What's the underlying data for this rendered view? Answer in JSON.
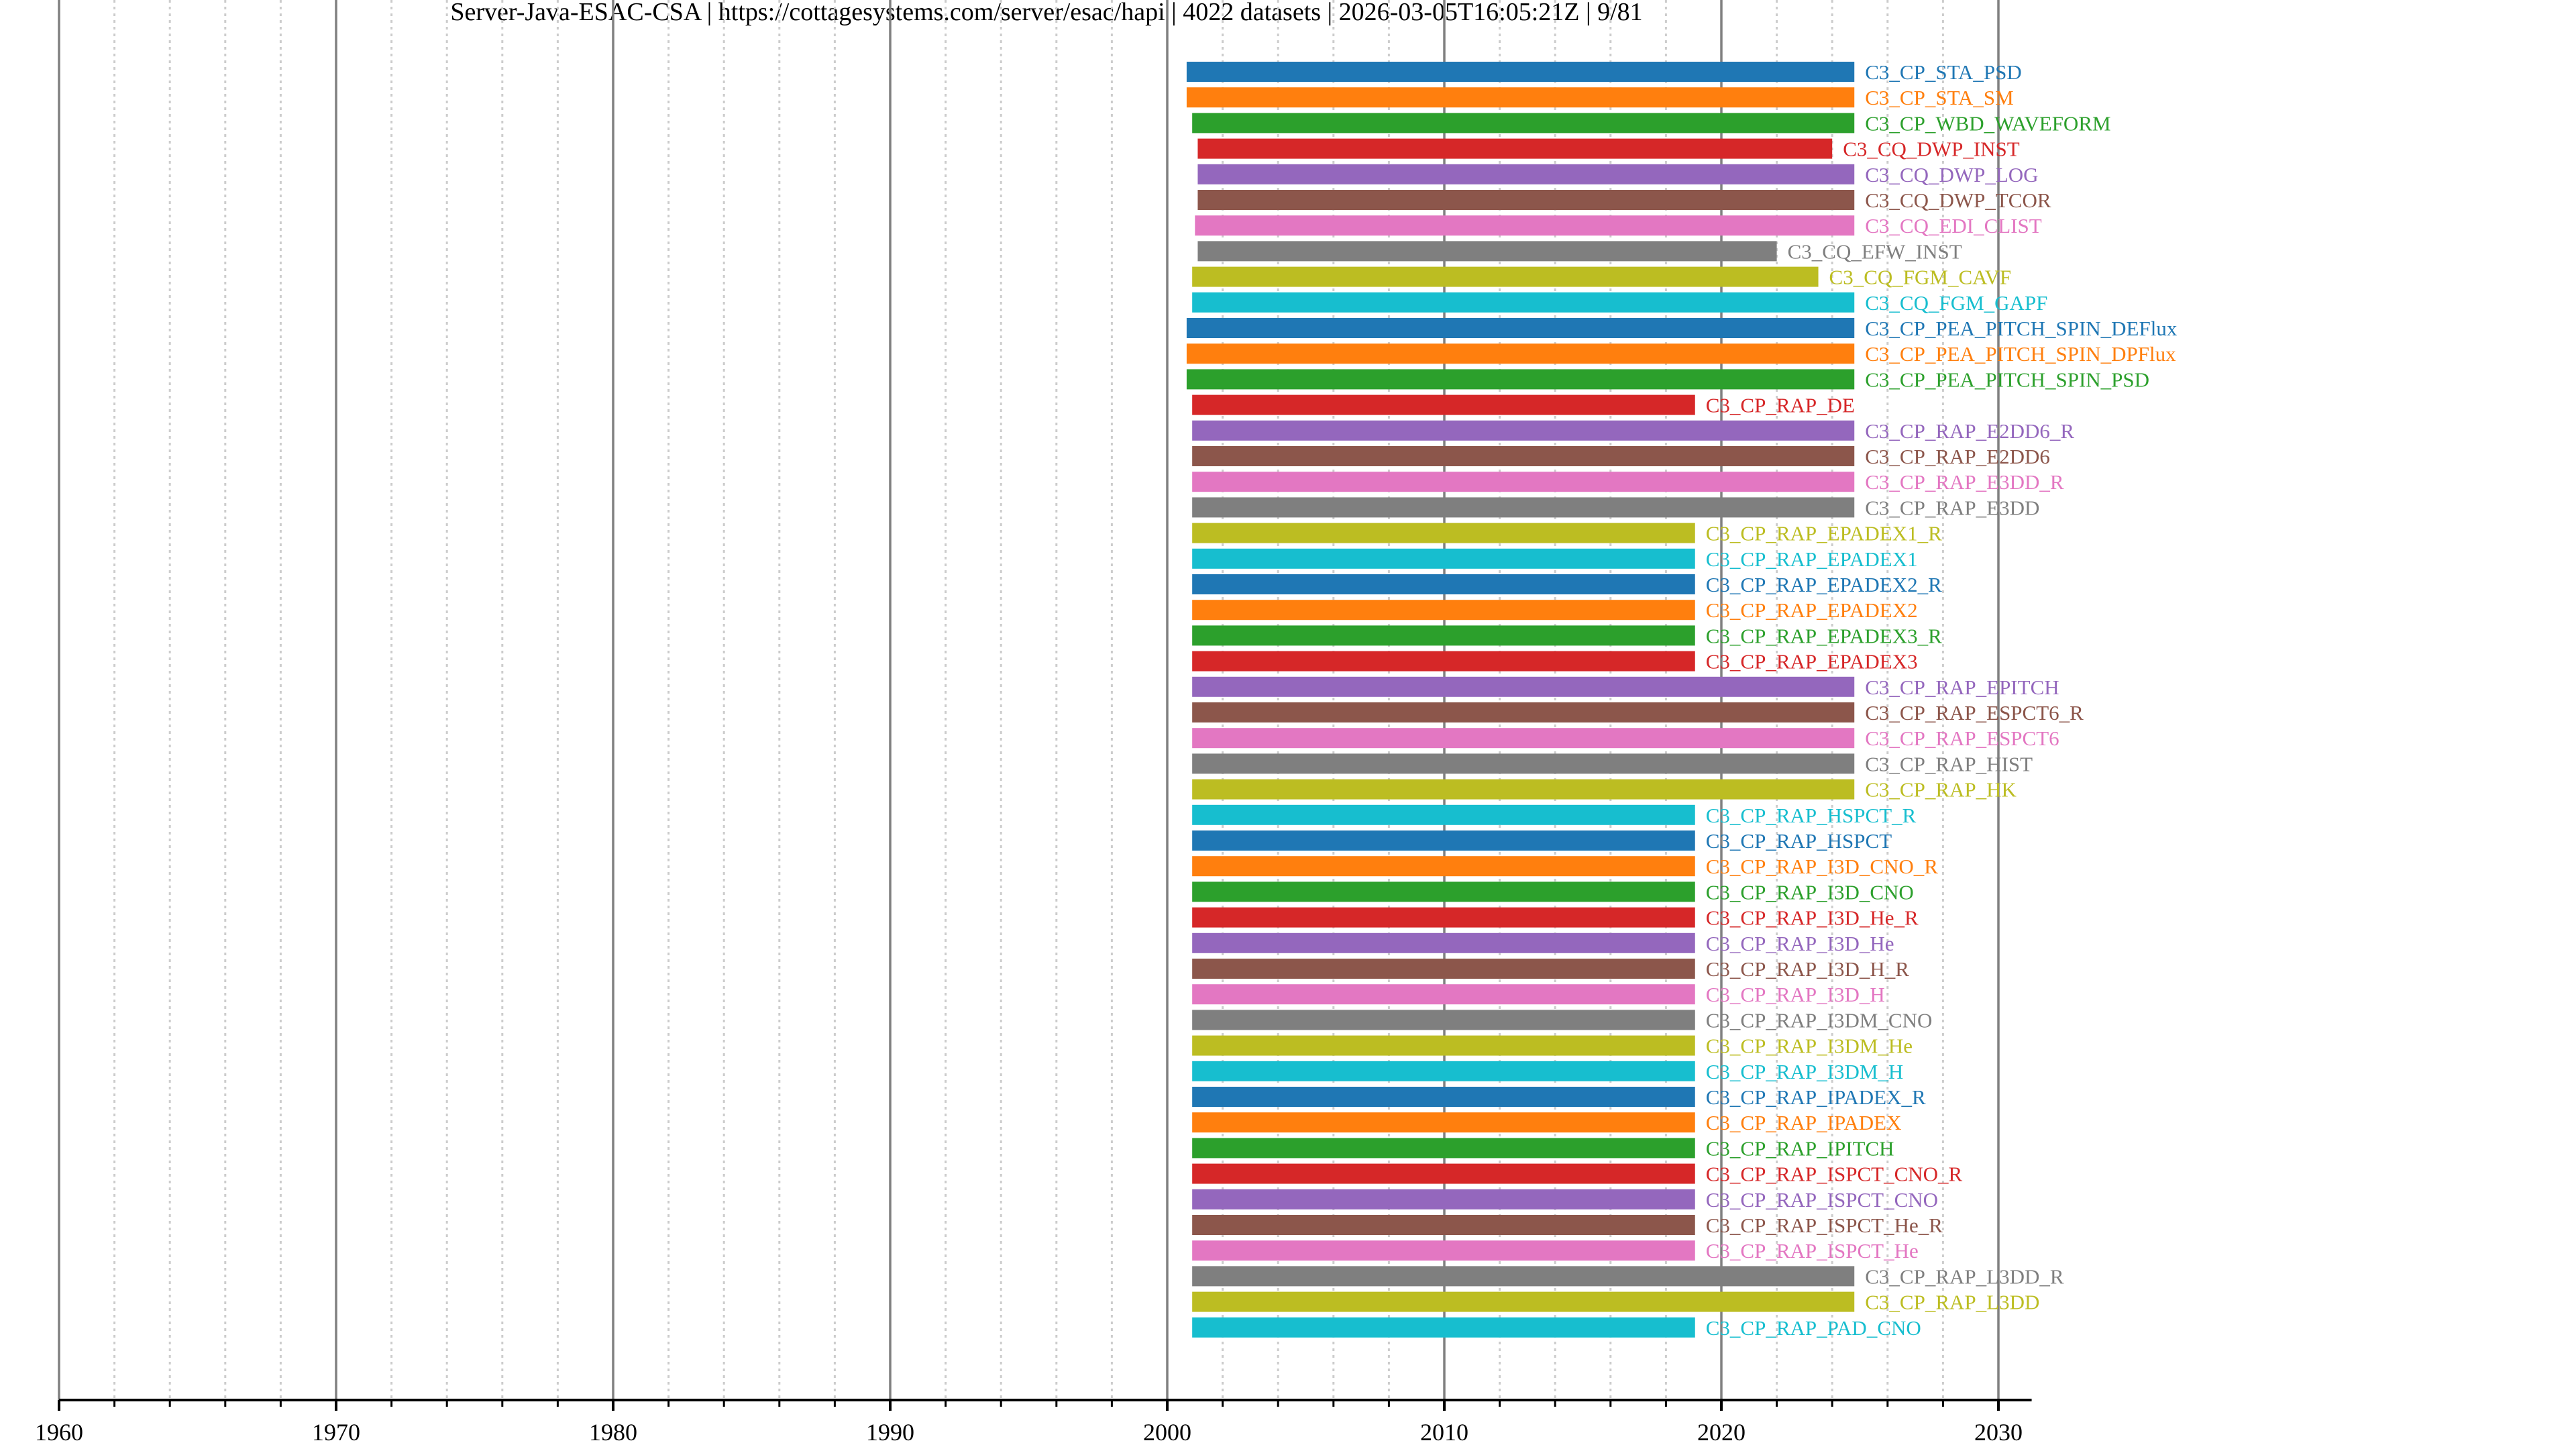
{
  "chart_data": {
    "type": "timeline-bar",
    "title": "Server-Java-ESAC-CSA | https://cottagesystems.com/server/esac/hapi | 4022 datasets | 2026-03-05T16:05:21Z | 9/81",
    "xlabel": "",
    "ylabel": "",
    "xlim": [
      1960,
      2031.2
    ],
    "major_ticks": [
      1960,
      1970,
      1980,
      1990,
      2000,
      2010,
      2020,
      2030
    ],
    "minor_tick_step": 2,
    "grid": true,
    "palette": [
      "#1f77b4",
      "#ff7f0e",
      "#2ca02c",
      "#d62728",
      "#9467bd",
      "#8c564b",
      "#e377c2",
      "#7f7f7f",
      "#bcbd22",
      "#17becf"
    ],
    "series": [
      {
        "name": "C3_CP_STA_PSD",
        "start": 2000.7,
        "stop": 2024.8
      },
      {
        "name": "C3_CP_STA_SM",
        "start": 2000.7,
        "stop": 2024.8
      },
      {
        "name": "C3_CP_WBD_WAVEFORM",
        "start": 2000.9,
        "stop": 2024.8
      },
      {
        "name": "C3_CQ_DWP_INST",
        "start": 2001.1,
        "stop": 2024.0
      },
      {
        "name": "C3_CQ_DWP_LOG",
        "start": 2001.1,
        "stop": 2024.8
      },
      {
        "name": "C3_CQ_DWP_TCOR",
        "start": 2001.1,
        "stop": 2024.8
      },
      {
        "name": "C3_CQ_EDI_CLIST",
        "start": 2001.0,
        "stop": 2024.8
      },
      {
        "name": "C3_CQ_EFW_INST",
        "start": 2001.1,
        "stop": 2022.0
      },
      {
        "name": "C3_CQ_FGM_CAVF",
        "start": 2000.9,
        "stop": 2023.5
      },
      {
        "name": "C3_CQ_FGM_GAPF",
        "start": 2000.9,
        "stop": 2024.8
      },
      {
        "name": "C3_CP_PEA_PITCH_SPIN_DEFlux",
        "start": 2000.7,
        "stop": 2024.8
      },
      {
        "name": "C3_CP_PEA_PITCH_SPIN_DPFlux",
        "start": 2000.7,
        "stop": 2024.8
      },
      {
        "name": "C3_CP_PEA_PITCH_SPIN_PSD",
        "start": 2000.7,
        "stop": 2024.8
      },
      {
        "name": "C3_CP_RAP_DE",
        "start": 2000.9,
        "stop": 2019.05
      },
      {
        "name": "C3_CP_RAP_E2DD6_R",
        "start": 2000.9,
        "stop": 2024.8
      },
      {
        "name": "C3_CP_RAP_E2DD6",
        "start": 2000.9,
        "stop": 2024.8
      },
      {
        "name": "C3_CP_RAP_E3DD_R",
        "start": 2000.9,
        "stop": 2024.8
      },
      {
        "name": "C3_CP_RAP_E3DD",
        "start": 2000.9,
        "stop": 2024.8
      },
      {
        "name": "C3_CP_RAP_EPADEX1_R",
        "start": 2000.9,
        "stop": 2019.05
      },
      {
        "name": "C3_CP_RAP_EPADEX1",
        "start": 2000.9,
        "stop": 2019.05
      },
      {
        "name": "C3_CP_RAP_EPADEX2_R",
        "start": 2000.9,
        "stop": 2019.05
      },
      {
        "name": "C3_CP_RAP_EPADEX2",
        "start": 2000.9,
        "stop": 2019.05
      },
      {
        "name": "C3_CP_RAP_EPADEX3_R",
        "start": 2000.9,
        "stop": 2019.05
      },
      {
        "name": "C3_CP_RAP_EPADEX3",
        "start": 2000.9,
        "stop": 2019.05
      },
      {
        "name": "C3_CP_RAP_EPITCH",
        "start": 2000.9,
        "stop": 2024.8
      },
      {
        "name": "C3_CP_RAP_ESPCT6_R",
        "start": 2000.9,
        "stop": 2024.8
      },
      {
        "name": "C3_CP_RAP_ESPCT6",
        "start": 2000.9,
        "stop": 2024.8
      },
      {
        "name": "C3_CP_RAP_HIST",
        "start": 2000.9,
        "stop": 2024.8
      },
      {
        "name": "C3_CP_RAP_HK",
        "start": 2000.9,
        "stop": 2024.8
      },
      {
        "name": "C3_CP_RAP_HSPCT_R",
        "start": 2000.9,
        "stop": 2019.05
      },
      {
        "name": "C3_CP_RAP_HSPCT",
        "start": 2000.9,
        "stop": 2019.05
      },
      {
        "name": "C3_CP_RAP_I3D_CNO_R",
        "start": 2000.9,
        "stop": 2019.05
      },
      {
        "name": "C3_CP_RAP_I3D_CNO",
        "start": 2000.9,
        "stop": 2019.05
      },
      {
        "name": "C3_CP_RAP_I3D_He_R",
        "start": 2000.9,
        "stop": 2019.05
      },
      {
        "name": "C3_CP_RAP_I3D_He",
        "start": 2000.9,
        "stop": 2019.05
      },
      {
        "name": "C3_CP_RAP_I3D_H_R",
        "start": 2000.9,
        "stop": 2019.05
      },
      {
        "name": "C3_CP_RAP_I3D_H",
        "start": 2000.9,
        "stop": 2019.05
      },
      {
        "name": "C3_CP_RAP_I3DM_CNO",
        "start": 2000.9,
        "stop": 2019.05
      },
      {
        "name": "C3_CP_RAP_I3DM_He",
        "start": 2000.9,
        "stop": 2019.05
      },
      {
        "name": "C3_CP_RAP_I3DM_H",
        "start": 2000.9,
        "stop": 2019.05
      },
      {
        "name": "C3_CP_RAP_IPADEX_R",
        "start": 2000.9,
        "stop": 2019.05
      },
      {
        "name": "C3_CP_RAP_IPADEX",
        "start": 2000.9,
        "stop": 2019.05
      },
      {
        "name": "C3_CP_RAP_IPITCH",
        "start": 2000.9,
        "stop": 2019.05
      },
      {
        "name": "C3_CP_RAP_ISPCT_CNO_R",
        "start": 2000.9,
        "stop": 2019.05
      },
      {
        "name": "C3_CP_RAP_ISPCT_CNO",
        "start": 2000.9,
        "stop": 2019.05
      },
      {
        "name": "C3_CP_RAP_ISPCT_He_R",
        "start": 2000.9,
        "stop": 2019.05
      },
      {
        "name": "C3_CP_RAP_ISPCT_He",
        "start": 2000.9,
        "stop": 2019.05
      },
      {
        "name": "C3_CP_RAP_L3DD_R",
        "start": 2000.9,
        "stop": 2024.8
      },
      {
        "name": "C3_CP_RAP_L3DD",
        "start": 2000.9,
        "stop": 2024.8
      },
      {
        "name": "C3_CP_RAP_PAD_CNO",
        "start": 2000.9,
        "stop": 2019.05
      }
    ]
  }
}
